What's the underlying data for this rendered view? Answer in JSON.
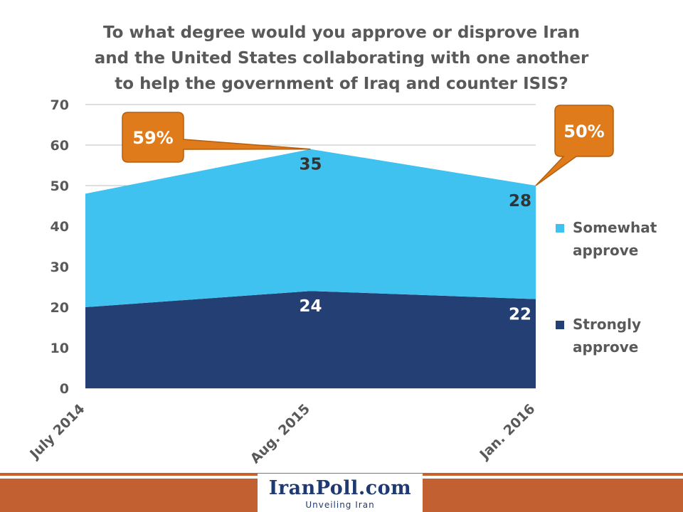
{
  "chart_data": {
    "type": "area",
    "stacked": true,
    "title_lines": [
      "To what degree would you approve or disprove Iran",
      "and the United States collaborating with one another",
      "to help the government of Iraq and counter ISIS?"
    ],
    "categories": [
      "July 2014",
      "Aug. 2015",
      "Jan. 2016"
    ],
    "series": [
      {
        "name": "Strongly approve",
        "legend_lines": [
          "Strongly",
          "approve"
        ],
        "values": [
          20,
          24,
          22
        ],
        "labels": [
          "",
          "24",
          "22"
        ],
        "color": "#243f74",
        "label_color": "#ffffff"
      },
      {
        "name": "Somewhat approve",
        "legend_lines": [
          "Somewhat",
          "approve"
        ],
        "values": [
          28,
          35,
          28
        ],
        "labels": [
          "",
          "35",
          "28"
        ],
        "color": "#40c2f0",
        "label_color": "#333333"
      }
    ],
    "y_ticks": [
      "0",
      "10",
      "20",
      "30",
      "40",
      "50",
      "60",
      "70"
    ],
    "ylim": [
      0,
      70
    ],
    "grid": true,
    "legend_position": "right",
    "callouts": [
      {
        "text": "59%",
        "category": "Aug. 2015",
        "value": 59
      },
      {
        "text": "50%",
        "category": "Jan. 2016",
        "value": 50
      }
    ],
    "callout_color": "#e07b1b"
  },
  "footer": {
    "logo_text": "IranPoll.com",
    "tagline": "Unveiling Iran"
  }
}
